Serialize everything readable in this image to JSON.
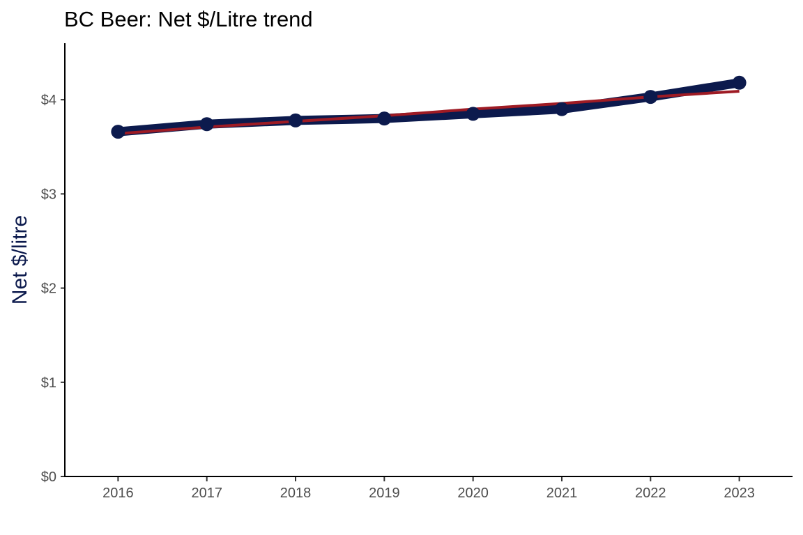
{
  "chart_data": {
    "type": "line",
    "title": "BC Beer: Net $/Litre trend",
    "xlabel": "",
    "ylabel": "Net $/litre",
    "x": [
      2016,
      2017,
      2018,
      2019,
      2020,
      2021,
      2022,
      2023
    ],
    "y_ticks": [
      "$0",
      "$1",
      "$2",
      "$3",
      "$4"
    ],
    "ylim": [
      0,
      4.6
    ],
    "xlim": [
      2015.4,
      2023.6
    ],
    "grid": false,
    "legend": "none",
    "series": [
      {
        "kind": "line+points",
        "values": [
          3.66,
          3.74,
          3.78,
          3.8,
          3.85,
          3.9,
          4.03,
          4.18
        ],
        "color": "#0c1a4d"
      },
      {
        "kind": "linear-trend",
        "values": [
          3.64,
          3.71,
          3.77,
          3.83,
          3.9,
          3.96,
          4.03,
          4.09
        ],
        "color": "#9e1b24"
      }
    ],
    "colors": {
      "axis": "#000000",
      "tick_text": "#4d4d4d",
      "ylabel": "#0c1a4d"
    }
  }
}
